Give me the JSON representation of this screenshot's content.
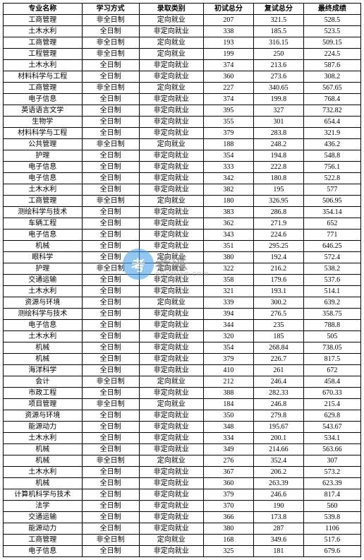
{
  "table": {
    "columns": [
      "专业名称",
      "学习方式",
      "录取类别",
      "初试总分",
      "复试总分",
      "最终成绩"
    ],
    "colWidths": [
      "22%",
      "16%",
      "18%",
      "14%",
      "14%",
      "16%"
    ],
    "borderColor": "#000000",
    "backgroundColor": "#ffffff",
    "fontSize": 10,
    "rows": [
      [
        "工商管理",
        "非全日制",
        "定向就业",
        "207",
        "321.5",
        "528.5"
      ],
      [
        "土木水利",
        "全日制",
        "非定向就业",
        "338",
        "185.5",
        "523.5"
      ],
      [
        "工商管理",
        "非全日制",
        "定向就业",
        "193",
        "316.15",
        "509.15"
      ],
      [
        "工程管理",
        "非全日制",
        "定向就业",
        "199",
        "250",
        "224.5"
      ],
      [
        "土木水利",
        "全日制",
        "非定向就业",
        "374",
        "213.6",
        "587.6"
      ],
      [
        "材料科学与工程",
        "全日制",
        "非定向就业",
        "360",
        "273.6",
        "308.2"
      ],
      [
        "工商管理",
        "非全日制",
        "定向就业",
        "227",
        "340.65",
        "567.65"
      ],
      [
        "电子信息",
        "全日制",
        "非定向就业",
        "374",
        "199.8",
        "768.4"
      ],
      [
        "英语语言文学",
        "全日制",
        "非定向就业",
        "395",
        "327",
        "732.82"
      ],
      [
        "生物学",
        "全日制",
        "非定向就业",
        "355",
        "301",
        "654.4"
      ],
      [
        "材料科学与工程",
        "全日制",
        "非定向就业",
        "379",
        "283.8",
        "321.9"
      ],
      [
        "公共管理",
        "非全日制",
        "定向就业",
        "188",
        "248.2",
        "436.2"
      ],
      [
        "护理",
        "全日制",
        "非定向就业",
        "354",
        "194.8",
        "548.8"
      ],
      [
        "电子信息",
        "全日制",
        "非定向就业",
        "333",
        "222.8",
        "756.1"
      ],
      [
        "电子信息",
        "全日制",
        "非定向就业",
        "342",
        "180.8",
        "522.8"
      ],
      [
        "土木水利",
        "全日制",
        "非定向就业",
        "382",
        "195",
        "577"
      ],
      [
        "工商管理",
        "非全日制",
        "定向就业",
        "180",
        "326.95",
        "506.95"
      ],
      [
        "测绘科学与技术",
        "全日制",
        "非定向就业",
        "383",
        "286.8",
        "354.14"
      ],
      [
        "车辆工程",
        "全日制",
        "非定向就业",
        "362",
        "271.9",
        "652"
      ],
      [
        "电子信息",
        "全日制",
        "非定向就业",
        "343",
        "224.6",
        "771"
      ],
      [
        "机械",
        "全日制",
        "非定向就业",
        "351",
        "295.25",
        "646.25"
      ],
      [
        "眼科学",
        "全日制",
        "定向就业",
        "380",
        "192.4",
        "572.4"
      ],
      [
        "护理",
        "非全日制",
        "定向就业",
        "322",
        "216.2",
        "538.2"
      ],
      [
        "交通运输",
        "全日制",
        "非定向就业",
        "358",
        "179.6",
        "537.6"
      ],
      [
        "土木水利",
        "全日制",
        "非定向就业",
        "321",
        "193.1",
        "514.1"
      ],
      [
        "资源与环境",
        "全日制",
        "定向就业",
        "339",
        "300.2",
        "639.2"
      ],
      [
        "测绘科学与技术",
        "全日制",
        "非定向就业",
        "394",
        "276.5",
        "358.75"
      ],
      [
        "电子信息",
        "全日制",
        "非定向就业",
        "344",
        "235",
        "788.8"
      ],
      [
        "土木水利",
        "全日制",
        "非定向就业",
        "320",
        "185",
        "505"
      ],
      [
        "机械",
        "全日制",
        "非定向就业",
        "354",
        "268.84",
        "738.05"
      ],
      [
        "机械",
        "全日制",
        "非定向就业",
        "379",
        "226.7",
        "817.5"
      ],
      [
        "海洋科学",
        "全日制",
        "非定向就业",
        "410",
        "261",
        "672"
      ],
      [
        "会计",
        "非全日制",
        "定向就业",
        "212",
        "246.4",
        "458.4"
      ],
      [
        "市政工程",
        "全日制",
        "非定向就业",
        "388",
        "282.33",
        "670.33"
      ],
      [
        "项目管理",
        "非全日制",
        "定向就业",
        "184",
        "246.8",
        "215.4"
      ],
      [
        "资源与环境",
        "全日制",
        "非定向就业",
        "350",
        "279.8",
        "629.8"
      ],
      [
        "能源动力",
        "全日制",
        "非定向就业",
        "348",
        "195.67",
        "543.67"
      ],
      [
        "土木水利",
        "全日制",
        "非定向就业",
        "334",
        "200.1",
        "534.1"
      ],
      [
        "机械",
        "全日制",
        "非定向就业",
        "349",
        "214.66",
        "563.66"
      ],
      [
        "机械",
        "非全日制",
        "定向就业",
        "276",
        "352.4",
        "307"
      ],
      [
        "土木水利",
        "全日制",
        "非定向就业",
        "367",
        "206.2",
        "573.2"
      ],
      [
        "机械",
        "全日制",
        "非定向就业",
        "360",
        "263.39",
        "623.39"
      ],
      [
        "计算机科学与技术",
        "全日制",
        "非定向就业",
        "379",
        "246.6",
        "817.4"
      ],
      [
        "法学",
        "全日制",
        "非定向就业",
        "370",
        "190",
        "560"
      ],
      [
        "交通运输",
        "全日制",
        "非定向就业",
        "366",
        "173.8",
        "539.8"
      ],
      [
        "能源动力",
        "全日制",
        "非定向就业",
        "380",
        "287",
        "1106"
      ],
      [
        "工商管理",
        "非全日制",
        "定向就业",
        "168",
        "349.6",
        "517.6"
      ],
      [
        "电子信息",
        "全日制",
        "非定向就业",
        "325",
        "181",
        "679.6"
      ]
    ]
  },
  "watermark": {
    "badge": "考",
    "text": "老派",
    "url": "okaoyan.com",
    "circleColor": "#4aa3e8",
    "textColor": "#888888",
    "urlColor": "#aaaaaa"
  }
}
